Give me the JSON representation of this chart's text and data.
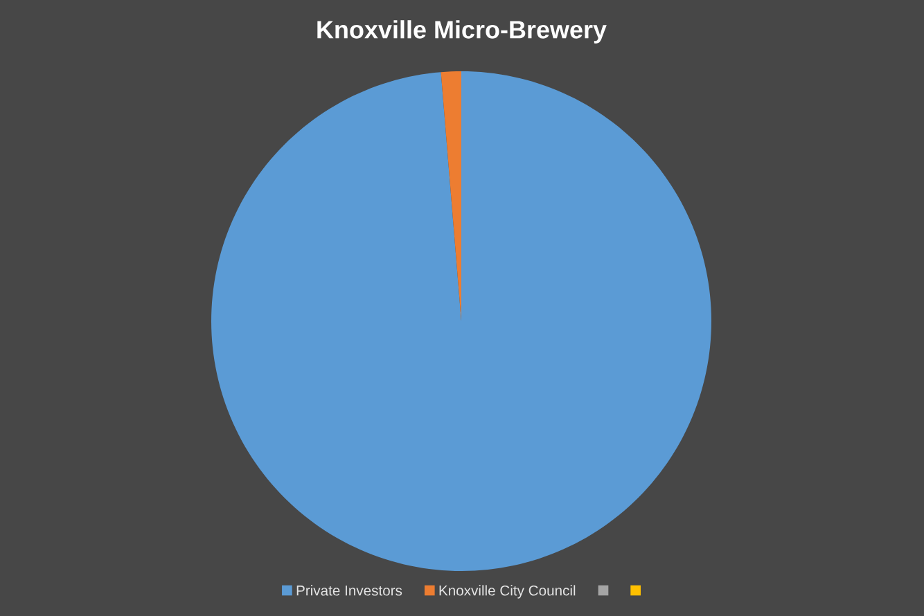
{
  "chart_data": {
    "type": "pie",
    "title": "Knoxville Micro-Brewery",
    "categories": [
      "Private Investors",
      "Knoxville City Council",
      null,
      null
    ],
    "values": [
      98.7,
      1.3,
      0,
      0
    ],
    "colors": [
      "#5b9bd5",
      "#ed7d31",
      "#a5a5a5",
      "#ffc000"
    ],
    "legend": "bottom"
  }
}
